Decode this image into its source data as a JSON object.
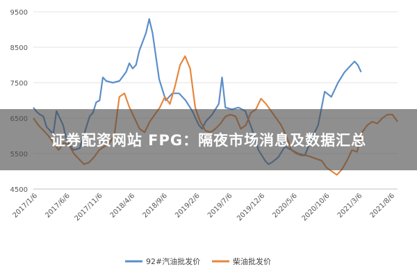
{
  "banner": {
    "text": "证券配资网站 FPG：隔夜市场消息及数据汇总"
  },
  "chart_data": {
    "type": "line",
    "x_ticks": [
      "2017/1/6",
      "2017/6/6",
      "2017/11/6",
      "2018/4/6",
      "2018/9/6",
      "2019/2/6",
      "2019/7/6",
      "2019/12/6",
      "2020/5/6",
      "2020/10/6",
      "2021/3/6",
      "2021/8/6"
    ],
    "y_ticks": [
      4500,
      5500,
      6500,
      7500,
      8500,
      9500
    ],
    "ylim": [
      4500,
      9500
    ],
    "xrange": [
      0,
      55
    ],
    "grid": "horizontal",
    "legend_position": "bottom",
    "colors": {
      "series1": "#5b8ec9",
      "series2": "#e7863b"
    },
    "series": [
      {
        "name": "92#汽油批发价",
        "values": [
          6800,
          6680,
          6600,
          6550,
          6250,
          6050,
          6700,
          6500,
          6300,
          5900,
          5600,
          5650,
          5950,
          6250,
          6550,
          6650,
          6950,
          7000,
          7650,
          7550,
          7500,
          7550,
          7800,
          8050,
          7900,
          8000,
          8400,
          8900,
          9300,
          8900,
          7600,
          7000,
          7100,
          7200,
          7200,
          7000,
          6700,
          6300,
          6200,
          6400,
          6600,
          6900,
          7650,
          6800,
          6750,
          6800,
          6700,
          6200,
          5600,
          5300,
          5200,
          5250,
          5400,
          5700,
          5600,
          5500,
          5450,
          5900,
          6300,
          7250,
          7100,
          7500,
          7800,
          8000,
          8100,
          8000,
          7800
        ],
        "x": [
          0,
          0.5,
          1,
          1.5,
          2,
          3,
          3.5,
          4,
          4.5,
          5,
          6,
          7,
          7.5,
          8,
          8.5,
          9,
          9.5,
          10,
          10.5,
          11,
          12,
          13,
          14,
          14.5,
          15,
          15.5,
          16,
          17,
          17.5,
          18,
          19,
          20,
          20.5,
          21,
          22,
          23,
          24,
          25,
          25.5,
          26,
          27,
          28,
          28.5,
          29,
          30,
          31,
          32,
          33,
          34,
          35,
          35.5,
          36,
          37,
          38,
          39,
          40,
          41,
          42,
          43,
          44,
          45,
          46,
          47,
          48,
          48.5,
          49,
          49.5
        ]
      },
      {
        "name": "柴油批发价",
        "values": [
          6500,
          6300,
          6150,
          6000,
          5800,
          5600,
          5800,
          5750,
          5500,
          5350,
          5200,
          5250,
          5400,
          5600,
          5700,
          5800,
          6000,
          7100,
          7200,
          6800,
          6500,
          6200,
          6100,
          6400,
          6600,
          6800,
          7100,
          6900,
          7400,
          8000,
          8250,
          7900,
          6800,
          6400,
          6150,
          6100,
          6200,
          6350,
          6550,
          6600,
          6550,
          6200,
          6300,
          6650,
          6750,
          7050,
          6900,
          6700,
          6500,
          6300,
          6000,
          5600,
          5500,
          5450,
          5450,
          5400,
          5350,
          5300,
          5100,
          5000,
          4900,
          5050,
          5300,
          5600,
          5550,
          6100,
          6300,
          6400,
          6350,
          6500,
          6600,
          6600,
          6400
        ]
      }
    ]
  },
  "legend": {
    "series1_label": "92#汽油批发价",
    "series2_label": "柴油批发价"
  }
}
